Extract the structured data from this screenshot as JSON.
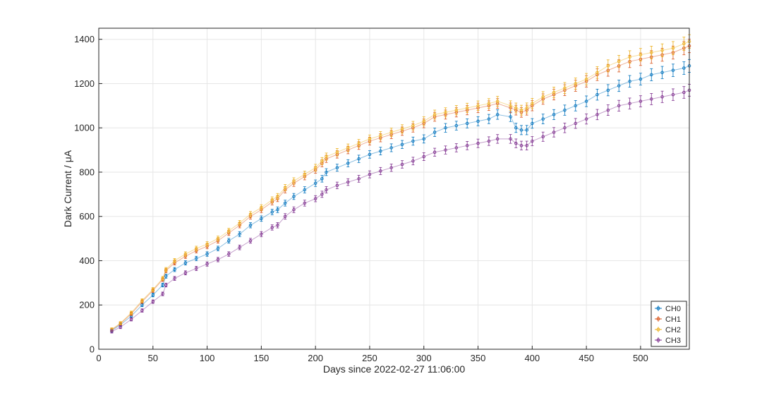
{
  "chart_data": {
    "type": "scatter",
    "title": "",
    "xlabel": "Days since 2022-02-27 11:06:00",
    "ylabel": "Dark Current / μA",
    "xlim": [
      0,
      545
    ],
    "ylim": [
      0,
      1450
    ],
    "xticks": [
      0,
      50,
      100,
      150,
      200,
      250,
      300,
      350,
      400,
      450,
      500
    ],
    "yticks": [
      0,
      200,
      400,
      600,
      800,
      1000,
      1200,
      1400
    ],
    "grid": true,
    "legend_location": "bottom-right",
    "error_bars": true,
    "series": [
      {
        "name": "CH0",
        "color": "#0072BD",
        "marker": "circle",
        "x": [
          12,
          20,
          30,
          40,
          50,
          59,
          62,
          70,
          80,
          90,
          100,
          110,
          120,
          130,
          140,
          150,
          160,
          165,
          172,
          180,
          190,
          200,
          206,
          210,
          220,
          230,
          240,
          250,
          260,
          270,
          280,
          290,
          300,
          310,
          320,
          330,
          340,
          350,
          360,
          368,
          380,
          385,
          390,
          395,
          400,
          410,
          420,
          430,
          440,
          450,
          460,
          470,
          480,
          490,
          500,
          510,
          520,
          530,
          540,
          545
        ],
        "y": [
          85,
          110,
          150,
          200,
          245,
          290,
          330,
          360,
          390,
          410,
          430,
          455,
          490,
          520,
          560,
          590,
          620,
          630,
          660,
          690,
          720,
          750,
          770,
          800,
          820,
          840,
          860,
          880,
          895,
          910,
          925,
          940,
          950,
          980,
          1000,
          1010,
          1020,
          1030,
          1040,
          1060,
          1050,
          1000,
          990,
          990,
          1020,
          1040,
          1060,
          1080,
          1100,
          1120,
          1150,
          1170,
          1190,
          1210,
          1220,
          1240,
          1250,
          1260,
          1270,
          1280
        ]
      },
      {
        "name": "CH1",
        "color": "#D95319",
        "marker": "circle",
        "x": [
          12,
          20,
          30,
          40,
          50,
          59,
          62,
          70,
          80,
          90,
          100,
          110,
          120,
          130,
          140,
          150,
          160,
          165,
          172,
          180,
          190,
          200,
          206,
          210,
          220,
          230,
          240,
          250,
          260,
          270,
          280,
          290,
          300,
          310,
          320,
          330,
          340,
          350,
          360,
          368,
          380,
          385,
          390,
          395,
          400,
          410,
          420,
          430,
          440,
          450,
          460,
          470,
          480,
          490,
          500,
          510,
          520,
          530,
          540,
          545
        ],
        "y": [
          88,
          115,
          160,
          215,
          265,
          315,
          355,
          390,
          420,
          445,
          465,
          490,
          525,
          560,
          600,
          630,
          665,
          680,
          720,
          750,
          780,
          810,
          840,
          860,
          880,
          900,
          920,
          940,
          955,
          970,
          985,
          1000,
          1020,
          1050,
          1060,
          1070,
          1080,
          1090,
          1100,
          1110,
          1090,
          1080,
          1070,
          1080,
          1100,
          1130,
          1150,
          1170,
          1190,
          1210,
          1240,
          1260,
          1280,
          1300,
          1310,
          1320,
          1330,
          1340,
          1360,
          1370
        ]
      },
      {
        "name": "CH2",
        "color": "#EDB120",
        "marker": "circle",
        "x": [
          12,
          20,
          30,
          40,
          50,
          59,
          62,
          70,
          80,
          90,
          100,
          110,
          120,
          130,
          140,
          150,
          160,
          165,
          172,
          180,
          190,
          200,
          206,
          210,
          220,
          230,
          240,
          250,
          260,
          270,
          280,
          290,
          300,
          310,
          320,
          330,
          340,
          350,
          360,
          368,
          380,
          385,
          390,
          395,
          400,
          410,
          420,
          430,
          440,
          450,
          460,
          470,
          480,
          490,
          500,
          510,
          520,
          530,
          540,
          545
        ],
        "y": [
          90,
          118,
          165,
          220,
          270,
          320,
          360,
          400,
          430,
          455,
          475,
          500,
          535,
          570,
          610,
          640,
          675,
          690,
          730,
          760,
          790,
          820,
          850,
          870,
          890,
          910,
          930,
          950,
          965,
          980,
          995,
          1010,
          1030,
          1060,
          1070,
          1080,
          1090,
          1100,
          1110,
          1120,
          1100,
          1090,
          1080,
          1090,
          1110,
          1140,
          1160,
          1180,
          1200,
          1220,
          1250,
          1280,
          1300,
          1320,
          1330,
          1340,
          1350,
          1360,
          1380,
          1390
        ]
      },
      {
        "name": "CH3",
        "color": "#7E2F8E",
        "marker": "circle",
        "x": [
          12,
          20,
          30,
          40,
          50,
          59,
          62,
          70,
          80,
          90,
          100,
          110,
          120,
          130,
          140,
          150,
          160,
          165,
          172,
          180,
          190,
          200,
          206,
          210,
          220,
          230,
          240,
          250,
          260,
          270,
          280,
          290,
          300,
          310,
          320,
          330,
          340,
          350,
          360,
          368,
          380,
          385,
          390,
          395,
          400,
          410,
          420,
          430,
          440,
          450,
          460,
          470,
          480,
          490,
          500,
          510,
          520,
          530,
          540,
          545
        ],
        "y": [
          80,
          100,
          135,
          175,
          215,
          250,
          290,
          320,
          345,
          365,
          385,
          405,
          430,
          460,
          490,
          520,
          550,
          560,
          600,
          630,
          660,
          680,
          700,
          720,
          740,
          755,
          770,
          790,
          805,
          820,
          835,
          850,
          870,
          890,
          900,
          910,
          920,
          930,
          940,
          950,
          950,
          930,
          920,
          920,
          940,
          960,
          980,
          1000,
          1020,
          1040,
          1060,
          1080,
          1100,
          1110,
          1120,
          1130,
          1140,
          1150,
          1160,
          1170
        ]
      }
    ]
  }
}
